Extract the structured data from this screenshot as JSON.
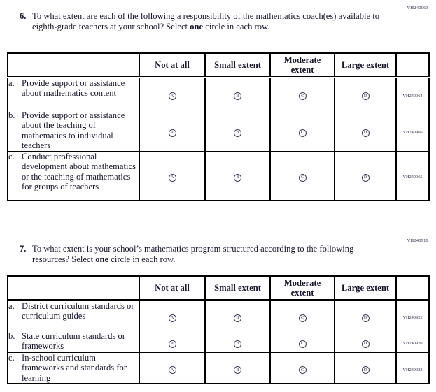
{
  "q6": {
    "code": "VH240963",
    "number": "6.",
    "prompt_before": "To what extent are each of the following a responsibility of the mathematics coach(es) available to eighth-grade teachers at your school? Select ",
    "prompt_bold": "one",
    "prompt_after": " circle in each row.",
    "table": {
      "headers": [
        "Not at all",
        "Small extent",
        "Moderate extent",
        "Large extent"
      ],
      "options": [
        "A",
        "B",
        "C",
        "D"
      ],
      "rows": [
        {
          "letter": "a.",
          "label": "Provide support or assistance about mathematics content",
          "code": "VH240964"
        },
        {
          "letter": "b.",
          "label": "Provide support or assistance about the teaching of mathematics to individual teachers",
          "code": "VH240966"
        },
        {
          "letter": "c.",
          "label": "Conduct professional development about mathematics or the teaching of mathematics for groups of teachers",
          "code": "VH240965"
        }
      ]
    }
  },
  "q7": {
    "code": "VH240919",
    "number": "7.",
    "prompt_before": "To what extent is your school’s mathematics program structured according to the following resources? Select ",
    "prompt_bold": "one",
    "prompt_after": " circle in each row.",
    "table": {
      "headers": [
        "Not at all",
        "Small extent",
        "Moderate extent",
        "Large extent"
      ],
      "options": [
        "A",
        "B",
        "C",
        "D"
      ],
      "rows": [
        {
          "letter": "a.",
          "label": "District curriculum standards or curriculum guides",
          "code": "VH240921"
        },
        {
          "letter": "b.",
          "label": "State curriculum standards or frameworks",
          "code": "VH240920"
        },
        {
          "letter": "c.",
          "label": "In-school curriculum frameworks and standards for learning",
          "code": "VH240923"
        }
      ]
    }
  }
}
